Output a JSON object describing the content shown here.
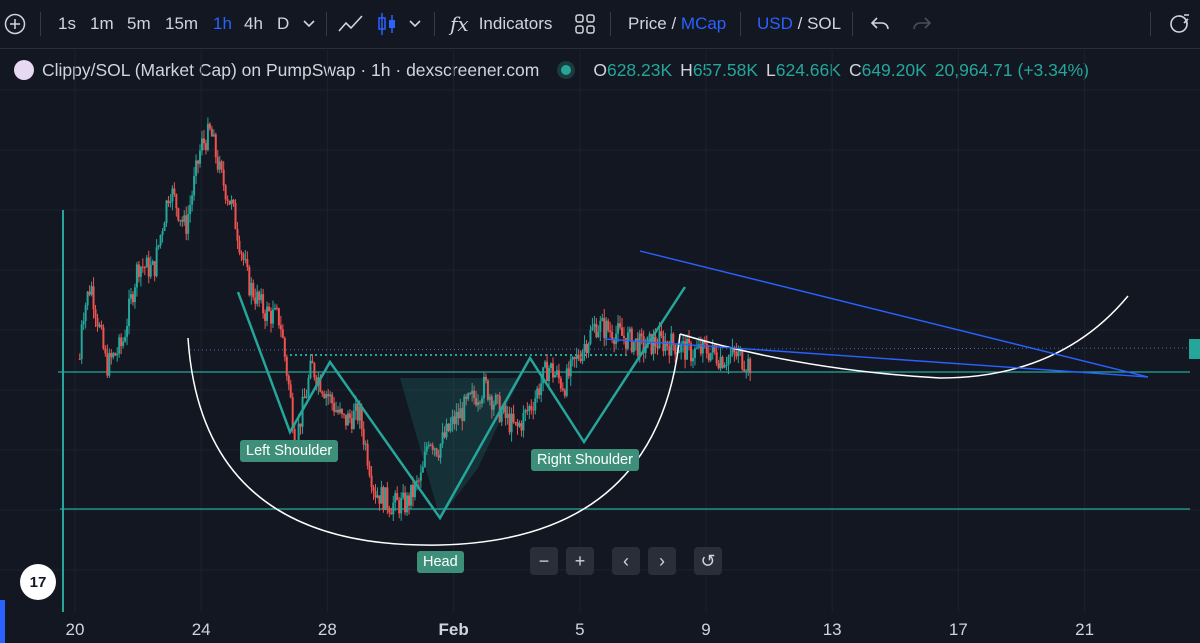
{
  "toolbar": {
    "intervals": [
      {
        "label": "1s",
        "active": false
      },
      {
        "label": "1m",
        "active": false
      },
      {
        "label": "5m",
        "active": false
      },
      {
        "label": "15m",
        "active": false
      },
      {
        "label": "1h",
        "active": true
      },
      {
        "label": "4h",
        "active": false
      },
      {
        "label": "D",
        "active": false
      }
    ],
    "indicators_label": "Indicators",
    "price_label": "Price",
    "price_sep": " / ",
    "mcap_label": "MCap",
    "usd_label": "USD",
    "currency_sep": " / ",
    "sol_label": "SOL"
  },
  "legend": {
    "symbol": "Clippy/SOL (Market Cap) on PumpSwap · 1h · dexscreener.com",
    "o_label": "O",
    "o_value": "628.23K",
    "h_label": "H",
    "h_value": "657.58K",
    "l_label": "L",
    "l_value": "624.66K",
    "c_label": "C",
    "c_value": "649.20K",
    "change": "20,964.71 (+3.34%)"
  },
  "annotations": {
    "left_shoulder": "Left Shoulder",
    "head": "Head",
    "right_shoulder": "Right Shoulder"
  },
  "nav": {
    "zoom_out": "−",
    "zoom_in": "+",
    "prev": "‹",
    "next": "›",
    "reset": "↺"
  },
  "logo_text": "17",
  "chart_data": {
    "type": "candlestick",
    "x_ticks": [
      "20",
      "24",
      "28",
      "Feb",
      "5",
      "9",
      "13",
      "17",
      "21"
    ],
    "colors": {
      "up": "#26a69a",
      "down": "#ef5350",
      "pattern": "#26a69a",
      "trendline": "#2962ff",
      "cup": "#ffffff"
    },
    "price_path": [
      [
        0.0,
        0.15
      ],
      [
        0.2,
        0.72
      ],
      [
        0.5,
        0.85
      ],
      [
        1.0,
        0.55
      ],
      [
        1.5,
        0.63
      ],
      [
        2.0,
        0.92
      ],
      [
        2.5,
        0.9
      ],
      [
        3.0,
        1.2
      ],
      [
        3.5,
        1.05
      ],
      [
        4.0,
        1.35
      ],
      [
        4.3,
        1.4
      ],
      [
        4.6,
        1.25
      ],
      [
        5.0,
        1.12
      ],
      [
        5.5,
        0.85
      ],
      [
        6.0,
        0.75
      ],
      [
        6.5,
        0.72
      ],
      [
        7.0,
        0.28
      ],
      [
        7.5,
        0.55
      ],
      [
        8.0,
        0.45
      ],
      [
        8.5,
        0.35
      ],
      [
        9.0,
        0.38
      ],
      [
        9.5,
        0.1
      ],
      [
        10.0,
        0.05
      ],
      [
        10.5,
        0.05
      ],
      [
        11.0,
        0.15
      ],
      [
        11.2,
        0.3
      ],
      [
        11.5,
        0.25
      ],
      [
        12.0,
        0.35
      ],
      [
        12.5,
        0.42
      ],
      [
        13.0,
        0.48
      ],
      [
        13.5,
        0.38
      ],
      [
        14.0,
        0.32
      ],
      [
        14.5,
        0.42
      ],
      [
        15.0,
        0.55
      ],
      [
        15.5,
        0.48
      ],
      [
        16.0,
        0.6
      ],
      [
        16.5,
        0.7
      ],
      [
        17.0,
        0.68
      ],
      [
        17.5,
        0.65
      ],
      [
        18.0,
        0.62
      ],
      [
        18.5,
        0.64
      ],
      [
        19.0,
        0.63
      ],
      [
        19.5,
        0.6
      ],
      [
        20.0,
        0.61
      ],
      [
        20.5,
        0.58
      ],
      [
        21.0,
        0.59
      ],
      [
        21.5,
        0.55
      ]
    ]
  }
}
